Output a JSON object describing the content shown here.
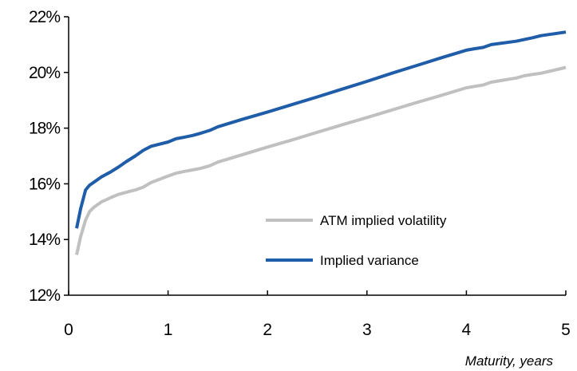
{
  "chart_data": {
    "type": "line",
    "title": "",
    "xlabel": "Maturity, years",
    "ylabel": "",
    "xlim": [
      0,
      5
    ],
    "ylim": [
      12,
      22
    ],
    "x_ticks": [
      0,
      1,
      2,
      3,
      4,
      5
    ],
    "x_tick_labels": [
      "0",
      "1",
      "2",
      "3",
      "4",
      "5"
    ],
    "y_ticks": [
      12,
      14,
      16,
      18,
      20,
      22
    ],
    "y_tick_labels": [
      "12%",
      "14%",
      "16%",
      "18%",
      "20%",
      "22%"
    ],
    "y_unit": "%",
    "grid": false,
    "legend_position": "lower-right",
    "series": [
      {
        "name": "ATM implied volatility",
        "color": "#c0c0c0",
        "x": [
          0.08,
          0.12,
          0.17,
          0.21,
          0.25,
          0.33,
          0.42,
          0.5,
          0.58,
          0.67,
          0.75,
          0.83,
          1.0,
          1.08,
          1.17,
          1.25,
          1.33,
          1.42,
          1.5,
          1.75,
          2.0,
          2.25,
          2.5,
          2.75,
          3.0,
          3.25,
          3.5,
          3.75,
          4.0,
          4.08,
          4.17,
          4.25,
          4.5,
          4.58,
          4.67,
          4.75,
          5.0
        ],
        "y": [
          13.45,
          14.1,
          14.7,
          15.0,
          15.15,
          15.35,
          15.5,
          15.62,
          15.7,
          15.78,
          15.88,
          16.05,
          16.28,
          16.38,
          16.45,
          16.5,
          16.56,
          16.65,
          16.78,
          17.05,
          17.32,
          17.58,
          17.85,
          18.12,
          18.38,
          18.65,
          18.92,
          19.18,
          19.45,
          19.5,
          19.55,
          19.65,
          19.8,
          19.88,
          19.93,
          19.97,
          20.18
        ]
      },
      {
        "name": "Implied variance",
        "color": "#1f5da8",
        "x": [
          0.08,
          0.12,
          0.17,
          0.21,
          0.25,
          0.33,
          0.42,
          0.5,
          0.58,
          0.67,
          0.75,
          0.83,
          1.0,
          1.08,
          1.17,
          1.25,
          1.33,
          1.42,
          1.5,
          1.75,
          2.0,
          2.25,
          2.5,
          2.75,
          3.0,
          3.25,
          3.5,
          3.75,
          4.0,
          4.08,
          4.17,
          4.25,
          4.5,
          4.58,
          4.67,
          4.75,
          5.0
        ],
        "y": [
          14.4,
          15.1,
          15.78,
          15.95,
          16.05,
          16.25,
          16.42,
          16.6,
          16.8,
          17.0,
          17.2,
          17.35,
          17.5,
          17.62,
          17.68,
          17.74,
          17.82,
          17.92,
          18.05,
          18.32,
          18.58,
          18.85,
          19.12,
          19.4,
          19.68,
          19.97,
          20.25,
          20.53,
          20.8,
          20.85,
          20.9,
          21.0,
          21.12,
          21.18,
          21.25,
          21.32,
          21.45
        ]
      }
    ]
  }
}
